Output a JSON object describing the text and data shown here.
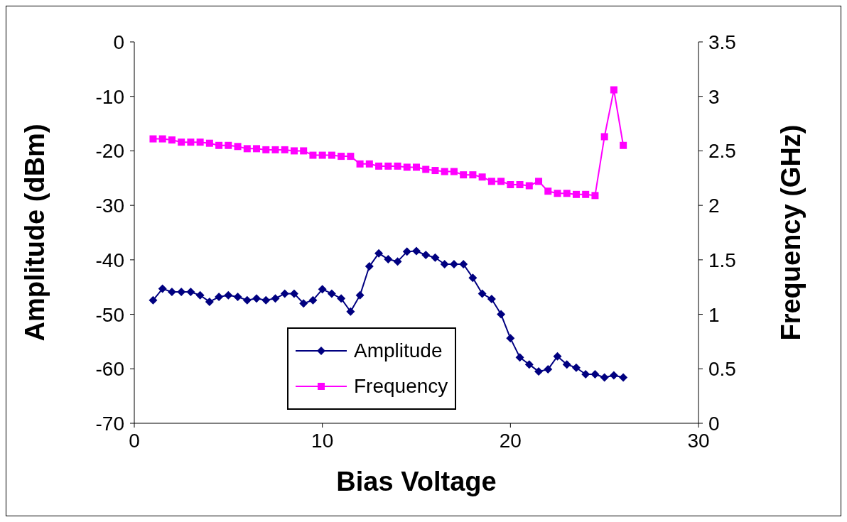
{
  "chart_data": {
    "type": "line",
    "xlabel": "Bias Voltage",
    "ylabel": "Amplitude (dBm)",
    "y2label": "Frequency (GHz)",
    "x": [
      1,
      1.5,
      2,
      2.5,
      3,
      3.5,
      4,
      4.5,
      5,
      5.5,
      6,
      6.5,
      7,
      7.5,
      8,
      8.5,
      9,
      9.5,
      10,
      10.5,
      11,
      11.5,
      12,
      12.5,
      13,
      13.5,
      14,
      14.5,
      15,
      15.5,
      16,
      16.5,
      17,
      17.5,
      18,
      18.5,
      19,
      19.5,
      20,
      20.5,
      21,
      21.5,
      22,
      22.5,
      23,
      23.5,
      24,
      24.5,
      25,
      25.5,
      26
    ],
    "series": [
      {
        "name": "Amplitude",
        "color": "#000080",
        "marker": "diamond",
        "values": [
          -47.4,
          -45.3,
          -45.9,
          -45.9,
          -45.9,
          -46.5,
          -47.7,
          -46.8,
          -46.5,
          -46.8,
          -47.4,
          -47.1,
          -47.4,
          -47.1,
          -46.2,
          -46.2,
          -48.0,
          -47.4,
          -45.4,
          -46.2,
          -47.1,
          -49.5,
          -46.5,
          -41.2,
          -38.8,
          -39.9,
          -40.3,
          -38.5,
          -38.4,
          -39.1,
          -39.6,
          -40.8,
          -40.8,
          -40.8,
          -43.3,
          -46.2,
          -47.2,
          -50.0,
          -54.4,
          -57.9,
          -59.2,
          -60.5,
          -60.1,
          -57.7,
          -59.2,
          -59.8,
          -61.0,
          -61.0,
          -61.6,
          -61.2,
          -61.6
        ]
      },
      {
        "name": "Frequency",
        "color": "#ff00ff",
        "marker": "square",
        "axis": "y2",
        "values": [
          2.61,
          2.61,
          2.6,
          2.58,
          2.58,
          2.58,
          2.57,
          2.55,
          2.55,
          2.54,
          2.52,
          2.52,
          2.51,
          2.51,
          2.51,
          2.5,
          2.5,
          2.46,
          2.46,
          2.46,
          2.45,
          2.45,
          2.38,
          2.38,
          2.36,
          2.36,
          2.36,
          2.35,
          2.35,
          2.33,
          2.32,
          2.31,
          2.31,
          2.28,
          2.28,
          2.26,
          2.22,
          2.22,
          2.19,
          2.19,
          2.18,
          2.22,
          2.13,
          2.11,
          2.11,
          2.1,
          2.1,
          2.09,
          2.63,
          3.06,
          2.55
        ]
      }
    ],
    "xlim": [
      0,
      30
    ],
    "xticks": [
      0,
      10,
      20,
      30
    ],
    "ylim": [
      -70,
      0
    ],
    "yticks": [
      -70,
      -60,
      -50,
      -40,
      -30,
      -20,
      -10,
      0
    ],
    "y2lim": [
      0,
      3.5
    ],
    "y2ticks": [
      0,
      0.5,
      1,
      1.5,
      2,
      2.5,
      3,
      3.5
    ],
    "grid": false,
    "legend": "bottom",
    "line_style": "solid"
  }
}
